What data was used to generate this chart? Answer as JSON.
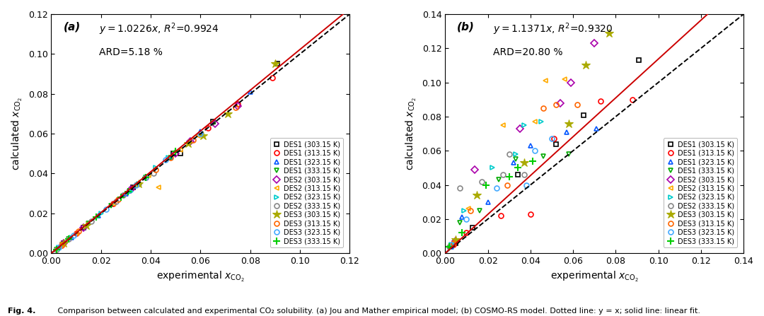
{
  "panel_a": {
    "label": "(a)",
    "slope": 1.0226,
    "r2": "0.9924",
    "ard": "ARD=5.18 %",
    "xlim": [
      0.0,
      0.12
    ],
    "ylim": [
      0.0,
      0.12
    ],
    "xticks": [
      0.0,
      0.02,
      0.04,
      0.06,
      0.08,
      0.1,
      0.12
    ],
    "yticks": [
      0.0,
      0.02,
      0.04,
      0.06,
      0.08,
      0.1,
      0.12
    ],
    "series": [
      {
        "label": "DES1 (303.15 K)",
        "color": "#000000",
        "marker": "s",
        "x": [
          0.005,
          0.013,
          0.033,
          0.049,
          0.052,
          0.065,
          0.091
        ],
        "y": [
          0.005,
          0.013,
          0.033,
          0.05,
          0.05,
          0.066,
          0.095
        ]
      },
      {
        "label": "DES1 (313.15 K)",
        "color": "#ff0000",
        "marker": "o",
        "x": [
          0.004,
          0.01,
          0.025,
          0.038,
          0.063,
          0.075,
          0.089
        ],
        "y": [
          0.004,
          0.01,
          0.025,
          0.038,
          0.063,
          0.075,
          0.088
        ]
      },
      {
        "label": "DES1 (323.15 K)",
        "color": "#0055ff",
        "marker": "^",
        "x": [
          0.003,
          0.008,
          0.019,
          0.03,
          0.048,
          0.06,
          0.08
        ],
        "y": [
          0.003,
          0.008,
          0.019,
          0.03,
          0.048,
          0.061,
          0.081
        ]
      },
      {
        "label": "DES1 (333.15 K)",
        "color": "#00aa00",
        "marker": "v",
        "x": [
          0.002,
          0.007,
          0.015,
          0.024,
          0.038,
          0.048,
          0.065
        ],
        "y": [
          0.002,
          0.007,
          0.015,
          0.024,
          0.038,
          0.048,
          0.065
        ]
      },
      {
        "label": "DES2 (303.15 K)",
        "color": "#aa00aa",
        "marker": "D",
        "x": [
          0.005,
          0.013,
          0.032,
          0.05,
          0.056,
          0.066,
          0.075
        ],
        "y": [
          0.005,
          0.013,
          0.032,
          0.05,
          0.056,
          0.065,
          0.074
        ]
      },
      {
        "label": "DES2 (313.15 K)",
        "color": "#ffaa00",
        "marker": "<",
        "x": [
          0.004,
          0.01,
          0.025,
          0.039,
          0.043,
          0.052,
          0.059
        ],
        "y": [
          0.004,
          0.01,
          0.025,
          0.039,
          0.033,
          0.052,
          0.059
        ]
      },
      {
        "label": "DES2 (323.15 K)",
        "color": "#00cccc",
        "marker": ">",
        "x": [
          0.003,
          0.008,
          0.02,
          0.032,
          0.035,
          0.042,
          0.047
        ],
        "y": [
          0.003,
          0.008,
          0.02,
          0.031,
          0.035,
          0.043,
          0.048
        ]
      },
      {
        "label": "DES2 (333.15 K)",
        "color": "#888888",
        "marker": "o",
        "x": [
          0.002,
          0.007,
          0.016,
          0.026,
          0.029,
          0.035,
          0.041
        ],
        "y": [
          0.002,
          0.007,
          0.016,
          0.026,
          0.029,
          0.035,
          0.04
        ]
      },
      {
        "label": "DES3 (303.15 K)",
        "color": "#aaaa00",
        "marker": "*",
        "x": [
          0.005,
          0.014,
          0.035,
          0.055,
          0.061,
          0.071,
          0.09
        ],
        "y": [
          0.005,
          0.014,
          0.035,
          0.055,
          0.059,
          0.07,
          0.095
        ]
      },
      {
        "label": "DES3 (313.15 K)",
        "color": "#ff6600",
        "marker": "o",
        "x": [
          0.004,
          0.011,
          0.027,
          0.042,
          0.048,
          0.057,
          0.074
        ],
        "y": [
          0.004,
          0.011,
          0.027,
          0.042,
          0.048,
          0.057,
          0.073
        ]
      },
      {
        "label": "DES3 (323.15 K)",
        "color": "#44aaff",
        "marker": "o",
        "x": [
          0.003,
          0.009,
          0.022,
          0.034,
          0.038,
          0.046,
          0.06
        ],
        "y": [
          0.003,
          0.009,
          0.022,
          0.034,
          0.038,
          0.047,
          0.06
        ]
      },
      {
        "label": "DES3 (333.15 K)",
        "color": "#00cc00",
        "marker": "+",
        "x": [
          0.002,
          0.007,
          0.018,
          0.028,
          0.031,
          0.038,
          0.05
        ],
        "y": [
          0.002,
          0.007,
          0.018,
          0.028,
          0.031,
          0.038,
          0.051
        ]
      }
    ]
  },
  "panel_b": {
    "label": "(b)",
    "slope": 1.1371,
    "r2": "0.9320",
    "ard": "ARD=20.80 %",
    "xlim": [
      0.0,
      0.14
    ],
    "ylim": [
      0.0,
      0.14
    ],
    "xticks": [
      0.0,
      0.02,
      0.04,
      0.06,
      0.08,
      0.1,
      0.12,
      0.14
    ],
    "yticks": [
      0.0,
      0.02,
      0.04,
      0.06,
      0.08,
      0.1,
      0.12,
      0.14
    ],
    "series": [
      {
        "label": "DES1 (303.15 K)",
        "color": "#000000",
        "marker": "s",
        "x": [
          0.005,
          0.013,
          0.034,
          0.052,
          0.065,
          0.091
        ],
        "y": [
          0.006,
          0.015,
          0.046,
          0.064,
          0.081,
          0.113
        ]
      },
      {
        "label": "DES1 (313.15 K)",
        "color": "#ff0000",
        "marker": "o",
        "x": [
          0.004,
          0.01,
          0.026,
          0.04,
          0.051,
          0.073,
          0.088
        ],
        "y": [
          0.005,
          0.012,
          0.022,
          0.023,
          0.067,
          0.089,
          0.09
        ]
      },
      {
        "label": "DES1 (323.15 K)",
        "color": "#0055ff",
        "marker": "^",
        "x": [
          0.003,
          0.008,
          0.02,
          0.032,
          0.04,
          0.057,
          0.071
        ],
        "y": [
          0.004,
          0.021,
          0.03,
          0.053,
          0.063,
          0.071,
          0.073
        ]
      },
      {
        "label": "DES1 (333.15 K)",
        "color": "#00aa00",
        "marker": "v",
        "x": [
          0.002,
          0.007,
          0.016,
          0.025,
          0.033,
          0.046,
          0.058
        ],
        "y": [
          0.003,
          0.018,
          0.025,
          0.043,
          0.055,
          0.057,
          0.058
        ]
      },
      {
        "label": "DES2 (303.15 K)",
        "color": "#aa00aa",
        "marker": "D",
        "x": [
          0.005,
          0.014,
          0.035,
          0.054,
          0.059,
          0.07
        ],
        "y": [
          0.007,
          0.049,
          0.073,
          0.088,
          0.1,
          0.123
        ]
      },
      {
        "label": "DES2 (313.15 K)",
        "color": "#ffaa00",
        "marker": "<",
        "x": [
          0.004,
          0.011,
          0.027,
          0.042,
          0.047,
          0.056
        ],
        "y": [
          0.006,
          0.026,
          0.075,
          0.077,
          0.101,
          0.102
        ]
      },
      {
        "label": "DES2 (323.15 K)",
        "color": "#00cccc",
        "marker": ">",
        "x": [
          0.003,
          0.009,
          0.022,
          0.033,
          0.037,
          0.045
        ],
        "y": [
          0.005,
          0.025,
          0.05,
          0.058,
          0.075,
          0.077
        ]
      },
      {
        "label": "DES2 (333.15 K)",
        "color": "#888888",
        "marker": "o",
        "x": [
          0.002,
          0.007,
          0.017,
          0.027,
          0.03,
          0.037
        ],
        "y": [
          0.004,
          0.038,
          0.042,
          0.046,
          0.058,
          0.046
        ]
      },
      {
        "label": "DES3 (303.15 K)",
        "color": "#aaaa00",
        "marker": "*",
        "x": [
          0.005,
          0.015,
          0.037,
          0.058,
          0.066,
          0.077
        ],
        "y": [
          0.008,
          0.034,
          0.053,
          0.076,
          0.11,
          0.129
        ]
      },
      {
        "label": "DES3 (313.15 K)",
        "color": "#ff6600",
        "marker": "o",
        "x": [
          0.004,
          0.012,
          0.029,
          0.046,
          0.052,
          0.062
        ],
        "y": [
          0.006,
          0.025,
          0.04,
          0.085,
          0.087,
          0.087
        ]
      },
      {
        "label": "DES3 (323.15 K)",
        "color": "#44aaff",
        "marker": "o",
        "x": [
          0.003,
          0.01,
          0.024,
          0.038,
          0.042,
          0.05
        ],
        "y": [
          0.005,
          0.02,
          0.038,
          0.04,
          0.06,
          0.067
        ]
      },
      {
        "label": "DES3 (333.15 K)",
        "color": "#00cc00",
        "marker": "+",
        "x": [
          0.002,
          0.008,
          0.019,
          0.03,
          0.034,
          0.041
        ],
        "y": [
          0.004,
          0.012,
          0.04,
          0.045,
          0.05,
          0.054
        ]
      }
    ]
  },
  "figcaption_bold": "Fig. 4.",
  "figcaption_rest": " Comparison between calculated and experimental CO₂ solubility. (a) Jou and Mather empirical model; (b) COSMO-RS model. Dotted line: y = x; solid line: linear fit.",
  "background_color": "#ffffff"
}
